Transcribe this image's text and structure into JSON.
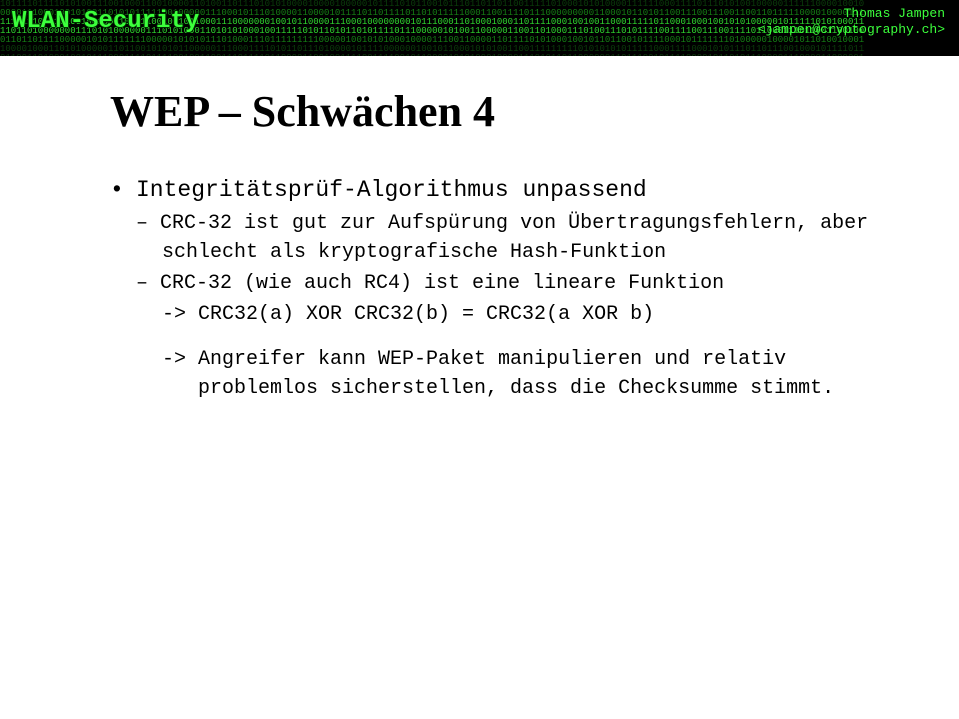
{
  "banner": {
    "title": "WLAN-Security",
    "author_name": "Thomas Jampen",
    "author_email": "<jampen@cryptography.ch>",
    "binary_color_dim": "#0b3d0b",
    "binary_color_mid": "#157f15",
    "binary_color_bright": "#2fd82f",
    "title_color": "#3cff3c",
    "bg_color": "#000000"
  },
  "slide": {
    "title": "WEP – Schwächen 4",
    "bullet": "Integritätsprüf-Algorithmus unpassend",
    "sub1": "– CRC-32 ist gut zur Aufspürung von Übertragungsfehlern, aber schlecht als kryptografische Hash-Funktion",
    "sub2": "– CRC-32 (wie auch RC4) ist eine lineare Funktion",
    "sub2_arrow": "-> CRC32(a) XOR CRC32(b) = CRC32(a XOR b)",
    "sub3_arrow": "-> Angreifer kann WEP-Paket manipulieren und relativ problemlos sicherstellen, dass die Checksumme stimmt."
  },
  "style": {
    "page_bg": "#ffffff",
    "title_font": "Georgia",
    "body_font": "Courier New",
    "title_size_pt": 44,
    "bullet_size_pt": 23,
    "sub_size_pt": 20,
    "text_color": "#000000"
  }
}
